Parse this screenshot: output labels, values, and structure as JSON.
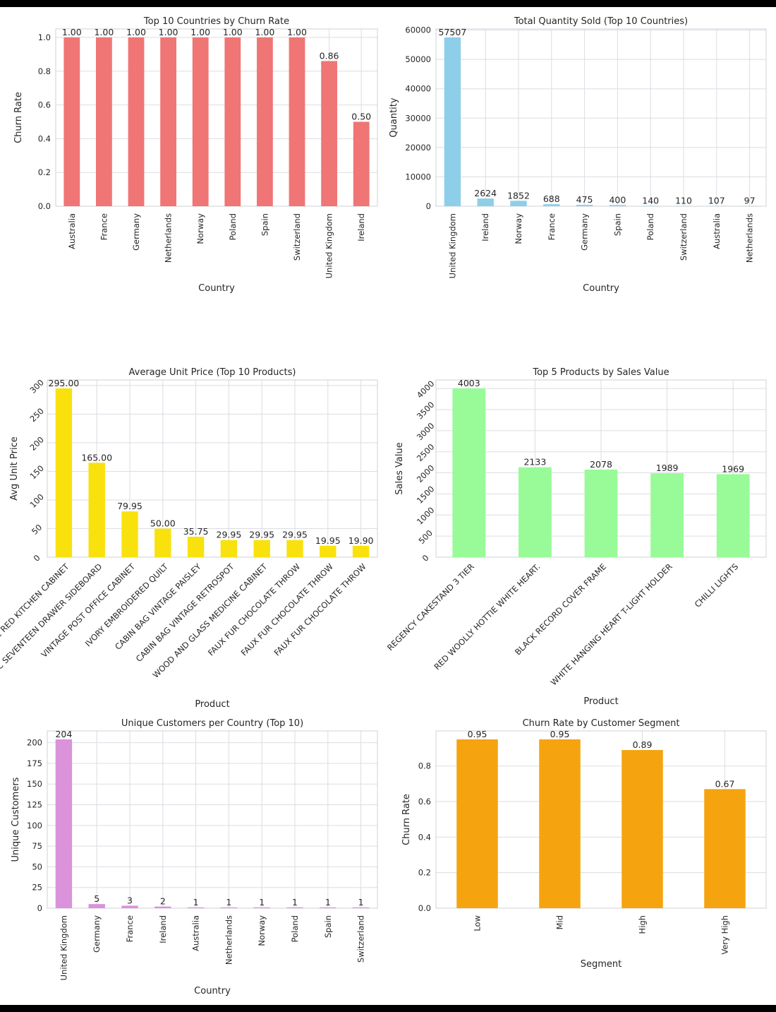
{
  "colors": {
    "churn_country": "#f07575",
    "quantity": "#8dcfe8",
    "unit_price": "#f9e10e",
    "sales_value": "#98fb98",
    "customers": "#da92db",
    "segment": "#f5a30f",
    "grid": "#dcdde3",
    "text": "#262626"
  },
  "chart_data": [
    {
      "type": "bar",
      "title": "Top 10 Countries by Churn Rate",
      "xlabel": "Country",
      "ylabel": "Churn Rate",
      "categories": [
        "Australia",
        "France",
        "Germany",
        "Netherlands",
        "Norway",
        "Poland",
        "Spain",
        "Switzerland",
        "United Kingdom",
        "Ireland"
      ],
      "values": [
        1.0,
        1.0,
        1.0,
        1.0,
        1.0,
        1.0,
        1.0,
        1.0,
        0.86,
        0.5
      ],
      "data_labels": [
        "1.00",
        "1.00",
        "1.00",
        "1.00",
        "1.00",
        "1.00",
        "1.00",
        "1.00",
        "0.86",
        "0.50"
      ],
      "ylim": [
        0,
        1.05
      ],
      "yticks": [
        "0.0",
        "0.2",
        "0.4",
        "0.6",
        "0.8",
        "1.0"
      ],
      "grid": true
    },
    {
      "type": "bar",
      "title": "Total Quantity Sold (Top 10 Countries)",
      "xlabel": "Country",
      "ylabel": "Quantity",
      "categories": [
        "United Kingdom",
        "Ireland",
        "Norway",
        "France",
        "Germany",
        "Spain",
        "Poland",
        "Switzerland",
        "Australia",
        "Netherlands"
      ],
      "values": [
        57507,
        2624,
        1852,
        688,
        475,
        400,
        140,
        110,
        107,
        97
      ],
      "data_labels": [
        "57507",
        "2624",
        "1852",
        "688",
        "475",
        "400",
        "140",
        "110",
        "107",
        "97"
      ],
      "ylim": [
        0,
        60383
      ],
      "yticks": [
        "0",
        "10000",
        "20000",
        "30000",
        "40000",
        "50000",
        "60000"
      ],
      "grid": true
    },
    {
      "type": "bar",
      "title": "Average Unit Price (Top 10 Products)",
      "xlabel": "Product",
      "ylabel": "Avg Unit Price",
      "categories": [
        "VINTAGE RED KITCHEN CABINET",
        "RUSTIC  SEVENTEEN DRAWER SIDEBOARD",
        "VINTAGE POST OFFICE CABINET",
        "IVORY EMBROIDERED QUILT",
        "CABIN BAG VINTAGE PAISLEY",
        "CABIN BAG VINTAGE RETROSPOT",
        "WOOD AND GLASS MEDICINE CABINET",
        "FAUX FUR CHOCOLATE THROW",
        "FAUX FUR CHOCOLATE THROW",
        "FAUX FUR CHOCOLATE THROW"
      ],
      "values": [
        295.0,
        165.0,
        79.95,
        50.0,
        35.75,
        29.95,
        29.95,
        29.95,
        19.95,
        19.9
      ],
      "data_labels": [
        "295.00",
        "165.00",
        "79.95",
        "50.00",
        "35.75",
        "29.95",
        "29.95",
        "29.95",
        "19.95",
        "19.90"
      ],
      "ylim": [
        0,
        309.75
      ],
      "yticks": [
        "0",
        "50",
        "100",
        "150",
        "200",
        "250",
        "300"
      ],
      "grid": true
    },
    {
      "type": "bar",
      "title": "Top 5 Products by Sales Value",
      "xlabel": "Product",
      "ylabel": "Sales Value",
      "categories": [
        "REGENCY CAKESTAND 3 TIER",
        "RED WOOLLY HOTTIE WHITE HEART.",
        "BLACK RECORD COVER FRAME",
        "WHITE HANGING HEART T-LIGHT HOLDER",
        "CHILLI LIGHTS"
      ],
      "values": [
        4003,
        2133,
        2078,
        1989,
        1969
      ],
      "data_labels": [
        "4003",
        "2133",
        "2078",
        "1989",
        "1969"
      ],
      "ylim": [
        0,
        4203
      ],
      "yticks": [
        "0",
        "500",
        "1000",
        "1500",
        "2000",
        "2500",
        "3000",
        "3500",
        "4000"
      ],
      "grid": true
    },
    {
      "type": "bar",
      "title": "Unique Customers per Country (Top 10)",
      "xlabel": "Country",
      "ylabel": "Unique Customers",
      "categories": [
        "United Kingdom",
        "Germany",
        "France",
        "Ireland",
        "Australia",
        "Netherlands",
        "Norway",
        "Poland",
        "Spain",
        "Switzerland"
      ],
      "values": [
        204,
        5,
        3,
        2,
        1,
        1,
        1,
        1,
        1,
        1
      ],
      "data_labels": [
        "204",
        "5",
        "3",
        "2",
        "1",
        "1",
        "1",
        "1",
        "1",
        "1"
      ],
      "ylim": [
        0,
        214.2
      ],
      "yticks": [
        "0",
        "25",
        "50",
        "75",
        "100",
        "125",
        "150",
        "175",
        "200"
      ],
      "grid": true
    },
    {
      "type": "bar",
      "title": "Churn Rate by Customer Segment",
      "xlabel": "Segment",
      "ylabel": "Churn Rate",
      "categories": [
        "Low",
        "Mid",
        "High",
        "Very High"
      ],
      "values": [
        0.95,
        0.95,
        0.89,
        0.67
      ],
      "data_labels": [
        "0.95",
        "0.95",
        "0.89",
        "0.67"
      ],
      "ylim": [
        0,
        0.9975
      ],
      "yticks": [
        "0.0",
        "0.2",
        "0.4",
        "0.6",
        "0.8"
      ],
      "grid": true
    }
  ]
}
